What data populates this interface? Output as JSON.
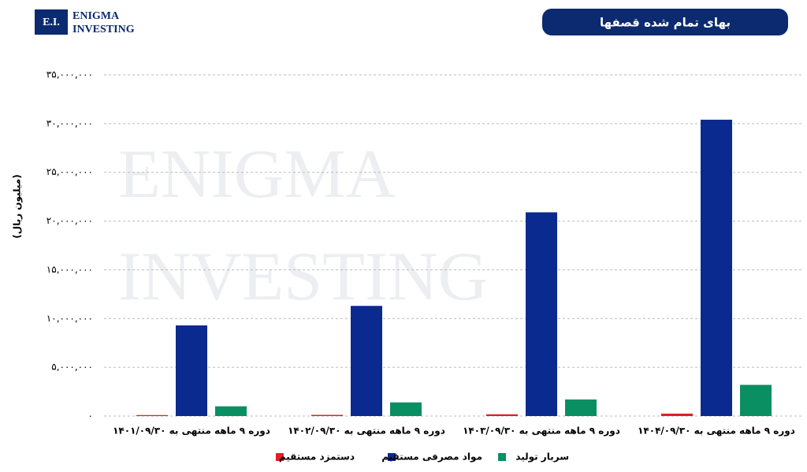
{
  "logo": {
    "mark": "E.I.",
    "line1": "ENIGMA",
    "line2": "INVESTING"
  },
  "watermark": {
    "line1": "ENIGMA",
    "line2": "INVESTING"
  },
  "chart_data": {
    "type": "bar",
    "title": "بهای تمام شده قصفها",
    "y_label": "(میلیون ریال)",
    "categories": [
      "دوره ۹ ماهه منتهی به ۱۴۰۱/۰۹/۳۰",
      "دوره ۹ ماهه منتهی به ۱۴۰۲/۰۹/۳۰",
      "دوره ۹ ماهه منتهی به ۱۴۰۳/۰۹/۳۰",
      "دوره ۹ ماهه منتهی به ۱۴۰۴/۰۹/۳۰"
    ],
    "series": [
      {
        "name": "دستمزد مستقیم",
        "color": "#e31e24",
        "values": [
          100000,
          120000,
          180000,
          250000
        ]
      },
      {
        "name": "مواد مصرفی مستقیم",
        "color": "#0b2a8f",
        "values": [
          9300000,
          11300000,
          20900000,
          30400000
        ]
      },
      {
        "name": "سربار تولید",
        "color": "#0a8f63",
        "values": [
          1000000,
          1400000,
          1700000,
          3200000
        ]
      }
    ],
    "ylim": [
      0,
      35000000
    ],
    "yticks": [
      {
        "value": 0,
        "label": "۰"
      },
      {
        "value": 5000000,
        "label": "۵,۰۰۰,۰۰۰"
      },
      {
        "value": 10000000,
        "label": "۱۰,۰۰۰,۰۰۰"
      },
      {
        "value": 15000000,
        "label": "۱۵,۰۰۰,۰۰۰"
      },
      {
        "value": 20000000,
        "label": "۲۰,۰۰۰,۰۰۰"
      },
      {
        "value": 25000000,
        "label": "۲۵,۰۰۰,۰۰۰"
      },
      {
        "value": 30000000,
        "label": "۳۰,۰۰۰,۰۰۰"
      },
      {
        "value": 35000000,
        "label": "۳۵,۰۰۰,۰۰۰"
      }
    ],
    "grid": true
  }
}
